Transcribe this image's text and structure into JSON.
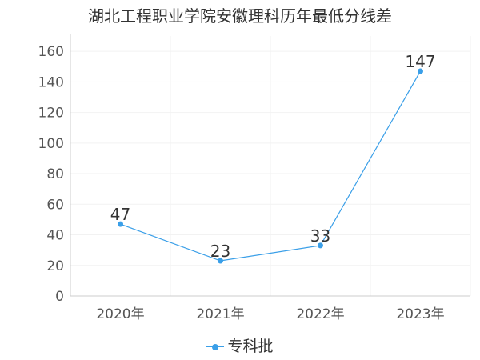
{
  "chart_data": {
    "type": "line",
    "title": "湖北工程职业学院安徽理科历年最低分线差",
    "categories": [
      "2020年",
      "2021年",
      "2022年",
      "2023年"
    ],
    "series": [
      {
        "name": "专科批",
        "values": [
          47,
          23,
          33,
          147
        ]
      }
    ],
    "ylim": [
      0,
      170
    ],
    "yticks": [
      0,
      20,
      40,
      60,
      80,
      100,
      120,
      140,
      160
    ],
    "grid": true,
    "legend": "bottom",
    "colors": {
      "series": "#3a9fe8",
      "axis": "#cccccc",
      "grid": "#f2f2f2"
    }
  }
}
